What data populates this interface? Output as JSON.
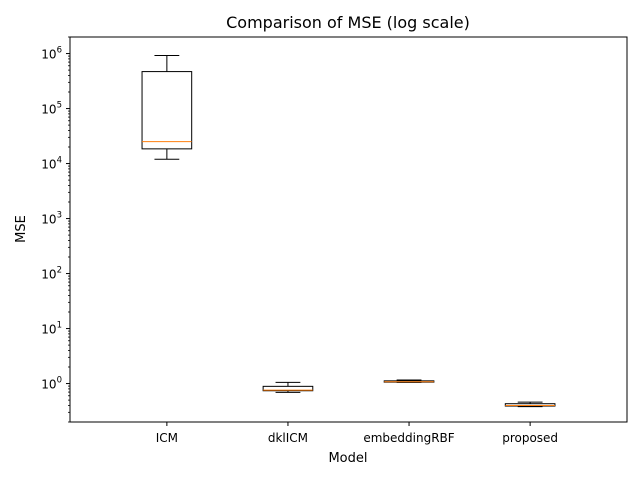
{
  "chart_data": {
    "type": "box",
    "title": "Comparison of MSE (log scale)",
    "xlabel": "Model",
    "ylabel": "MSE",
    "yscale": "log",
    "ylim": [
      0.2,
      2000000
    ],
    "categories": [
      "ICM",
      "dklICM",
      "embeddingRBF",
      "proposed"
    ],
    "boxes": [
      {
        "name": "ICM",
        "whisker_low": 12000,
        "q1": 18500,
        "median": 25000,
        "q3": 470000,
        "whisker_high": 920000
      },
      {
        "name": "dklICM",
        "whisker_low": 0.69,
        "q1": 0.74,
        "median": 0.76,
        "q3": 0.89,
        "whisker_high": 1.05
      },
      {
        "name": "embeddingRBF",
        "whisker_low": 1.05,
        "q1": 1.06,
        "median": 1.08,
        "q3": 1.12,
        "whisker_high": 1.16
      },
      {
        "name": "proposed",
        "whisker_low": 0.38,
        "q1": 0.39,
        "median": 0.4,
        "q3": 0.43,
        "whisker_high": 0.46
      }
    ],
    "yticks": [
      {
        "base": "10",
        "exp": "0",
        "value": 1
      },
      {
        "base": "10",
        "exp": "1",
        "value": 10
      },
      {
        "base": "10",
        "exp": "2",
        "value": 100
      },
      {
        "base": "10",
        "exp": "3",
        "value": 1000
      },
      {
        "base": "10",
        "exp": "4",
        "value": 10000
      },
      {
        "base": "10",
        "exp": "5",
        "value": 100000
      },
      {
        "base": "10",
        "exp": "6",
        "value": 1000000
      }
    ],
    "colors": {
      "box": "#000000",
      "median": "#ff7f0e"
    },
    "grid": false,
    "legend": "none"
  }
}
